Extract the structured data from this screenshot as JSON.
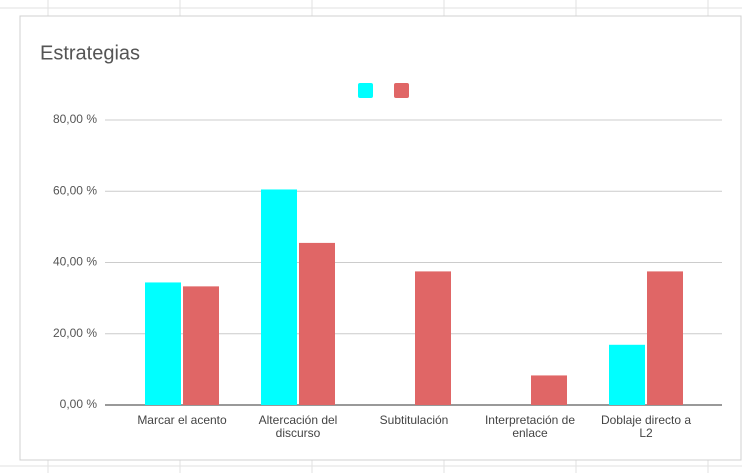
{
  "chart_data": {
    "type": "bar",
    "title": "Estrategias",
    "categories": [
      "Marcar el acento",
      "Altercación del discurso",
      "Subtitulación",
      "Interpretación de enlace",
      "Doblaje directo a L2"
    ],
    "series": [
      {
        "color": "#00ffff",
        "values": [
          34.4,
          60.5,
          0,
          0,
          16.9
        ]
      },
      {
        "color": "#e06666",
        "values": [
          33.3,
          45.5,
          37.5,
          8.3,
          37.5
        ]
      }
    ],
    "ylim": [
      0,
      88
    ],
    "yticks": [
      {
        "value": 0,
        "label": "0,00 %"
      },
      {
        "value": 20,
        "label": "20,00 %"
      },
      {
        "value": 40,
        "label": "40,00 %"
      },
      {
        "value": 60,
        "label": "60,00 %"
      },
      {
        "value": 80,
        "label": "80,00 %"
      }
    ],
    "grid": true
  }
}
